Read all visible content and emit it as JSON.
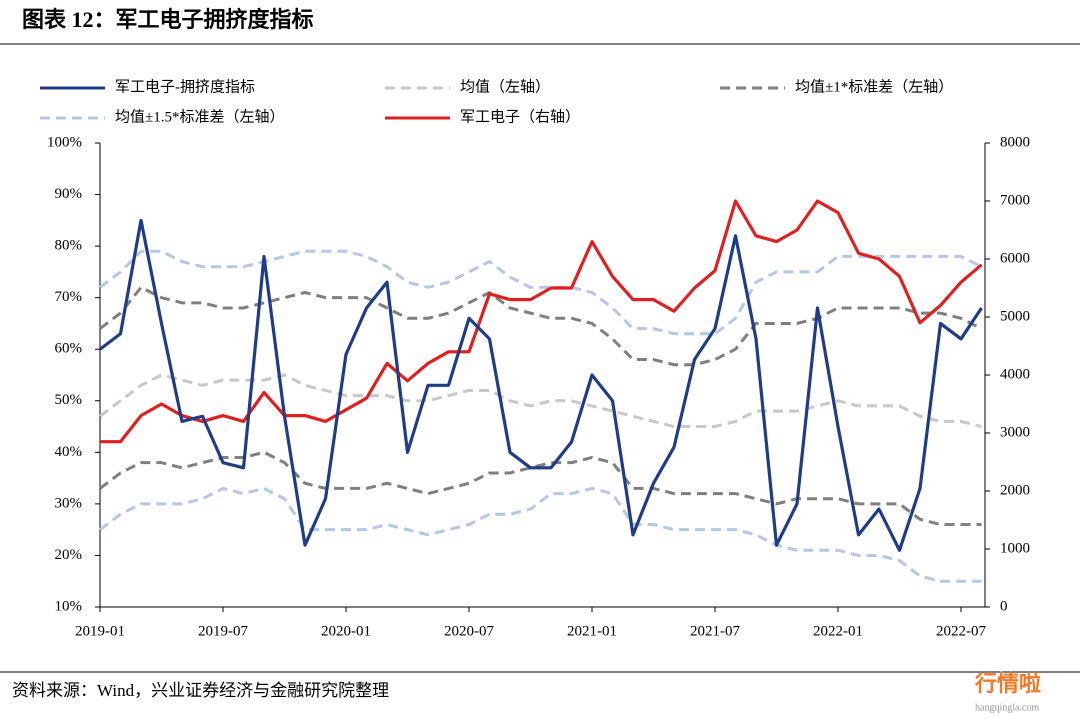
{
  "chart_data": {
    "type": "line",
    "title": "图表 12：军工电子拥挤度指标",
    "source": "资料来源：Wind，兴业证券经济与金融研究院整理",
    "watermark": "行情啦",
    "watermark_url": "hangqingla.com",
    "categories": [
      "2019-01",
      null,
      null,
      null,
      null,
      null,
      "2019-07",
      null,
      null,
      null,
      null,
      null,
      "2020-01",
      null,
      null,
      null,
      null,
      null,
      "2020-07",
      null,
      null,
      null,
      null,
      null,
      "2021-01",
      null,
      null,
      null,
      null,
      null,
      "2021-07",
      null,
      null,
      null,
      null,
      null,
      "2022-01",
      null,
      null,
      null,
      null,
      null,
      "2022-07",
      null
    ],
    "ylim": [
      10,
      100
    ],
    "yticks": [
      {
        "value": 10,
        "label": "10%"
      },
      {
        "value": 20,
        "label": "20%"
      },
      {
        "value": 30,
        "label": "30%"
      },
      {
        "value": 40,
        "label": "40%"
      },
      {
        "value": 50,
        "label": "50%"
      },
      {
        "value": 60,
        "label": "60%"
      },
      {
        "value": 70,
        "label": "70%"
      },
      {
        "value": 80,
        "label": "80%"
      },
      {
        "value": 90,
        "label": "90%"
      },
      {
        "value": 100,
        "label": "100%"
      }
    ],
    "y2lim": [
      0,
      8000
    ],
    "y2ticks": [
      0,
      1000,
      2000,
      3000,
      4000,
      5000,
      6000,
      7000,
      8000
    ],
    "series": [
      {
        "name": "军工电子-拥挤度指标",
        "color": "#1f3c88",
        "dash": false,
        "values": [
          60,
          63,
          85,
          65,
          46,
          47,
          38,
          37,
          78,
          47,
          22,
          31,
          59,
          68,
          73,
          40,
          53,
          53,
          66,
          62,
          40,
          37,
          37,
          42,
          55,
          50,
          24,
          34,
          41,
          58,
          64,
          82,
          62,
          22,
          30,
          68,
          45,
          24,
          29,
          21,
          33,
          65,
          62,
          68
        ]
      },
      {
        "name": "均值（左轴）",
        "color": "#c8c8c8",
        "dash": true,
        "values": [
          47,
          50,
          53,
          55,
          54,
          53,
          54,
          54,
          54,
          55,
          53,
          52,
          51,
          51,
          51,
          50,
          50,
          51,
          52,
          52,
          50,
          49,
          50,
          50,
          49,
          48,
          47,
          46,
          45,
          45,
          45,
          46,
          48,
          48,
          48,
          49,
          50,
          49,
          49,
          49,
          47,
          46,
          46,
          45
        ]
      },
      {
        "name": "均值±1*标准差（左轴）",
        "color": "#7f7f7f",
        "dash": true,
        "values": [
          64,
          67,
          72,
          70,
          69,
          69,
          68,
          68,
          69,
          70,
          71,
          70,
          70,
          70,
          68,
          66,
          66,
          67,
          69,
          71,
          68,
          67,
          66,
          66,
          65,
          62,
          58,
          58,
          57,
          57,
          58,
          60,
          65,
          65,
          65,
          66,
          68,
          68,
          68,
          68,
          67,
          67,
          66,
          64
        ]
      },
      {
        "color": "#7f7f7f",
        "dash": true,
        "values": [
          33,
          36,
          38,
          38,
          37,
          38,
          39,
          39,
          40,
          38,
          34,
          33,
          33,
          33,
          34,
          33,
          32,
          33,
          34,
          36,
          36,
          37,
          38,
          38,
          39,
          38,
          33,
          33,
          32,
          32,
          32,
          32,
          31,
          30,
          31,
          31,
          31,
          30,
          30,
          30,
          27,
          26,
          26,
          26
        ]
      },
      {
        "name": "均值±1.5*标准差（左轴）",
        "color": "#b4c7e7",
        "dash": true,
        "values": [
          72,
          75,
          79,
          79,
          77,
          76,
          76,
          76,
          77,
          78,
          79,
          79,
          79,
          78,
          76,
          73,
          72,
          73,
          75,
          77,
          74,
          72,
          72,
          72,
          71,
          68,
          64,
          64,
          63,
          63,
          63,
          66,
          73,
          75,
          75,
          75,
          78,
          78,
          78,
          78,
          78,
          78,
          78,
          76
        ]
      },
      {
        "color": "#b4c7e7",
        "dash": true,
        "values": [
          25,
          28,
          30,
          30,
          30,
          31,
          33,
          32,
          33,
          31,
          25,
          25,
          25,
          25,
          26,
          25,
          24,
          25,
          26,
          28,
          28,
          29,
          32,
          32,
          33,
          32,
          26,
          26,
          25,
          25,
          25,
          25,
          24,
          22,
          21,
          21,
          21,
          20,
          20,
          19,
          16,
          15,
          15,
          15
        ]
      },
      {
        "name": "军工电子（右轴）",
        "color": "#e02020",
        "dash": false,
        "axis": "y2",
        "values": [
          2850,
          2850,
          3300,
          3500,
          3300,
          3200,
          3300,
          3200,
          3700,
          3300,
          3300,
          3200,
          3400,
          3600,
          4200,
          3900,
          4200,
          4400,
          4400,
          5400,
          5300,
          5300,
          5500,
          5500,
          6300,
          5700,
          5300,
          5300,
          5100,
          5500,
          5800,
          7000,
          6400,
          6300,
          6500,
          7000,
          6800,
          6100,
          6000,
          5700,
          4900,
          5200,
          5600,
          5900
        ]
      }
    ]
  }
}
